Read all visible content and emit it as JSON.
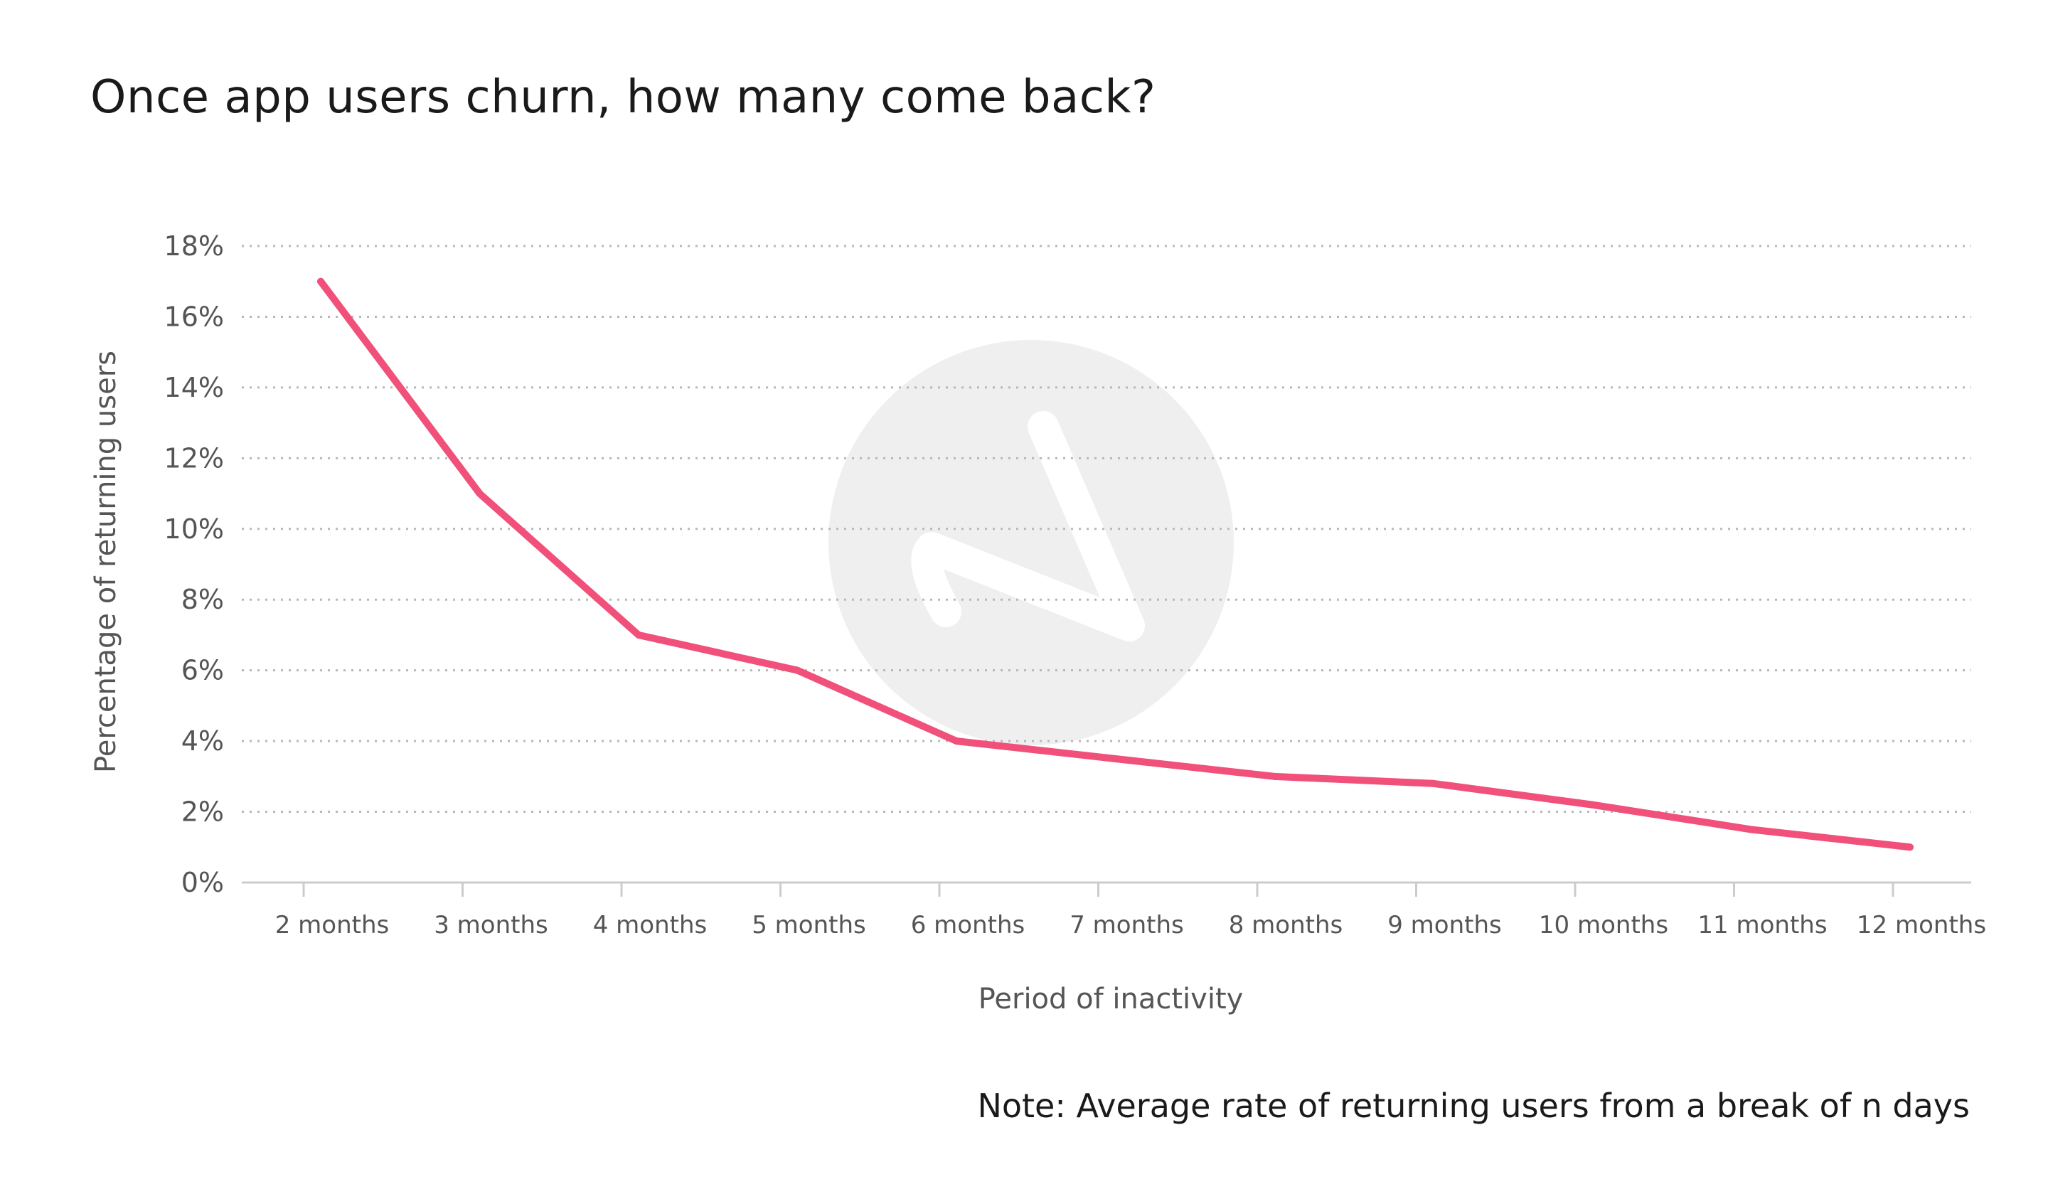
{
  "title": "Once app users churn, how many come back?",
  "note": "Note: Average rate of returning users from a break of n days",
  "colors": {
    "line": "#f0507a",
    "grid": "#b8b8b8",
    "axis": "#cccccc",
    "watermark": "#efefef"
  },
  "chart_data": {
    "type": "line",
    "title": "Once app users churn, how many come back?",
    "xlabel": "Period of inactivity",
    "ylabel": "Percentage of returning users",
    "categories": [
      "2 months",
      "3 months",
      "4 months",
      "5 months",
      "6 months",
      "7 months",
      "8 months",
      "9 months",
      "10 months",
      "11 months",
      "12 months"
    ],
    "series": [
      {
        "values": [
          17,
          11,
          7,
          6,
          4,
          3.5,
          3,
          2.8,
          2.2,
          1.5,
          1
        ]
      }
    ],
    "ylim": [
      0,
      18
    ],
    "yticks": [
      0,
      2,
      4,
      6,
      8,
      10,
      12,
      14,
      16,
      18
    ],
    "ytick_labels": [
      "0%",
      "2%",
      "4%",
      "6%",
      "8%",
      "10%",
      "12%",
      "14%",
      "16%",
      "18%"
    ],
    "grid": "horizontal dotted",
    "legend": "none"
  }
}
